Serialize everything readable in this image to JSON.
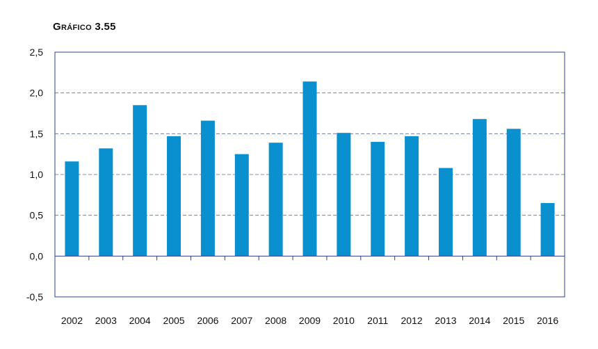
{
  "chart_data": {
    "type": "bar",
    "title": "Gráfico 3.55",
    "categories": [
      "2002",
      "2003",
      "2004",
      "2005",
      "2006",
      "2007",
      "2008",
      "2009",
      "2010",
      "2011",
      "2012",
      "2013",
      "2014",
      "2015",
      "2016"
    ],
    "values": [
      1.16,
      1.32,
      1.85,
      1.47,
      1.66,
      1.25,
      1.39,
      2.14,
      1.51,
      1.4,
      1.47,
      1.08,
      1.68,
      1.56,
      0.65
    ],
    "ylim": [
      -0.5,
      2.5
    ],
    "yticks": [
      2.5,
      2.0,
      1.5,
      1.0,
      0.5,
      0.0,
      -0.5
    ],
    "ytick_labels": [
      "2,5",
      "2,0",
      "1,5",
      "1,0",
      "0,5",
      "0,0",
      "-0,5"
    ],
    "xlabel": "",
    "ylabel": "",
    "grid": "horizontal dashed",
    "bar_color": "#0a8fcf",
    "axis_color": "#2e3f8a"
  }
}
